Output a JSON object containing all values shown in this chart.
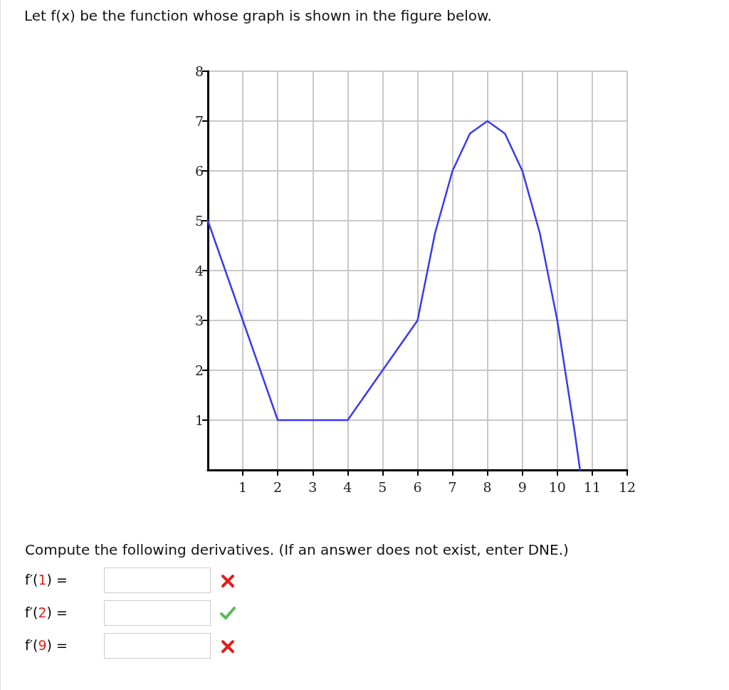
{
  "chart_data": {
    "type": "line",
    "title": "Let f(x) be the function whose graph is shown in the figure below.",
    "x": [
      0,
      2,
      4,
      6,
      6.5,
      7,
      7.5,
      8,
      8.5,
      9,
      9.5,
      10,
      10.5,
      10.65
    ],
    "series": [
      {
        "color": "#3a3af0",
        "values": [
          5,
          1,
          1,
          3,
          4.75,
          6,
          6.75,
          7,
          6.75,
          6,
          4.75,
          3,
          0.75,
          0
        ]
      }
    ],
    "xlim": [
      0,
      12
    ],
    "xticks": [
      1,
      2,
      3,
      4,
      5,
      6,
      7,
      8,
      9,
      10,
      11,
      12
    ],
    "ylim": [
      0,
      8
    ],
    "yticks": [
      1,
      2,
      3,
      4,
      5,
      6,
      7,
      8
    ],
    "grid": true,
    "marker": "none",
    "line_style": "solid",
    "annotations": [
      "Compute the following derivatives. (If an answer does not exist, enter DNE.)",
      "f′(1) =",
      "f′(2) =",
      "f′(9) ="
    ]
  }
}
